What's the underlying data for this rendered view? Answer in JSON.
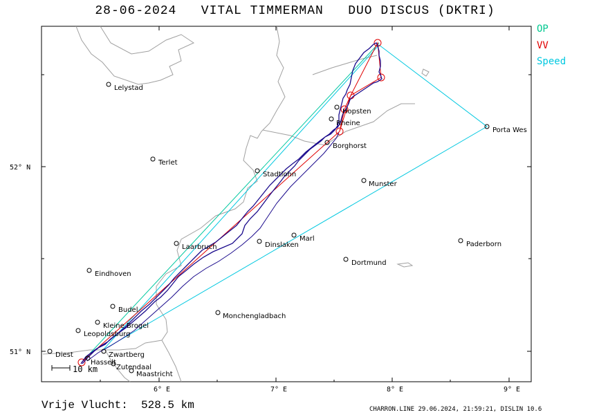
{
  "header": {
    "title": "28-06-2024   VITAL TIMMERMAN   DUO DISCUS (DKTRI)"
  },
  "legend": [
    {
      "label": "OP",
      "color": "#00c890"
    },
    {
      "label": "VV",
      "color": "#e00000"
    },
    {
      "label": "Speed",
      "color": "#00c8e0"
    }
  ],
  "axes": {
    "lat_labels": [
      "52° N",
      "51° N"
    ],
    "lon_labels": [
      "6° E",
      "7° E",
      "8° E",
      "9° E"
    ]
  },
  "places": [
    {
      "name": "Lelystad"
    },
    {
      "name": "Terlet"
    },
    {
      "name": "Stadtlohn"
    },
    {
      "name": "Hopsten"
    },
    {
      "name": "Rheine"
    },
    {
      "name": "Borghorst"
    },
    {
      "name": "Porta Wes"
    },
    {
      "name": "Munster"
    },
    {
      "name": "Laarbruch"
    },
    {
      "name": "Dinslaken"
    },
    {
      "name": "Marl"
    },
    {
      "name": "Paderborn"
    },
    {
      "name": "Eindhoven"
    },
    {
      "name": "Dortmund"
    },
    {
      "name": "Budel"
    },
    {
      "name": "Monchengladbach"
    },
    {
      "name": "Kleine Brogel"
    },
    {
      "name": "Leopoldsburg"
    },
    {
      "name": "Diest"
    },
    {
      "name": "Zwartberg"
    },
    {
      "name": "Hasselt"
    },
    {
      "name": "Zutendaal"
    },
    {
      "name": "Maastricht"
    }
  ],
  "scale_label": "10 km",
  "footer": {
    "distance": "Vrije Vlucht:  528.5 km",
    "credit": "CHARRON.LINE 29.06.2024, 21:59:21, DISLIN 10.6"
  },
  "colors": {
    "track": "#1a0a8c",
    "border": "#a0a0a0",
    "op_line": "#00c8a0",
    "vv_line": "#e00000",
    "speed_line": "#00c8e0"
  }
}
